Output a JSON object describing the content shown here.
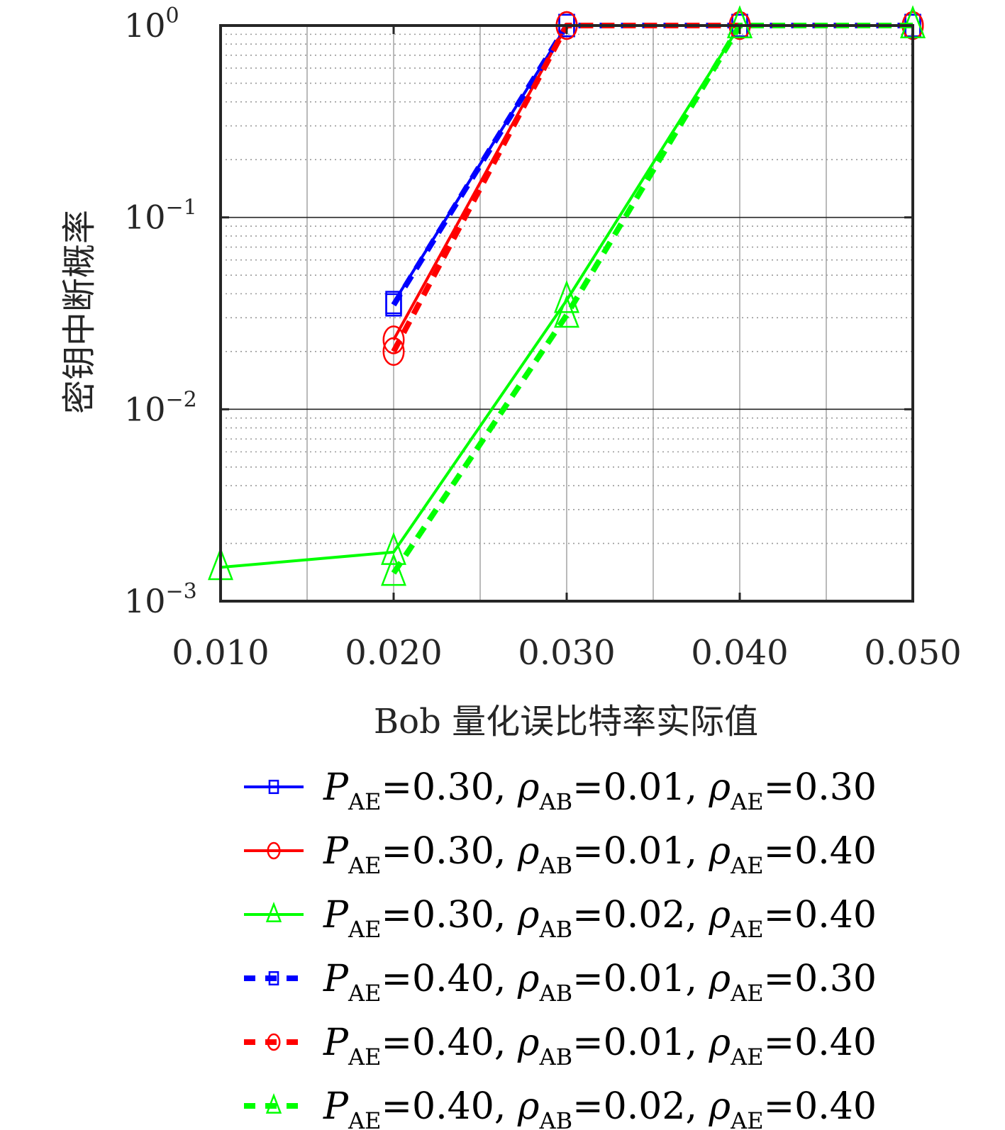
{
  "chart_data": {
    "type": "line",
    "xlabel": "Bob 量化误比特率实际值",
    "ylabel": "密钥中断概率",
    "x_tick_labels": [
      "0.010",
      "0.020",
      "0.030",
      "0.040",
      "0.050"
    ],
    "x_ticks": [
      0.01,
      0.02,
      0.03,
      0.04,
      0.05
    ],
    "xlim": [
      0.01,
      0.05
    ],
    "yscale": "log",
    "ylim": [
      0.001,
      1
    ],
    "y_tick_labels": [
      {
        "base": "10",
        "exp": "−3",
        "value": 0.001
      },
      {
        "base": "10",
        "exp": "−2",
        "value": 0.01
      },
      {
        "base": "10",
        "exp": "−1",
        "value": 0.1
      },
      {
        "base": "10",
        "exp": "0",
        "value": 1
      }
    ],
    "grid": true,
    "minor_grid": true,
    "legend_position": "bottom",
    "series": [
      {
        "name": "P_AE=0.30, ρ_AB=0.01, ρ_AE=0.30",
        "legend": {
          "P": "0.30",
          "rab": "0.01",
          "rae": "0.30"
        },
        "color": "#0000FF",
        "dash": "solid",
        "marker": "square",
        "x": [
          0.02,
          0.03,
          0.04,
          0.05
        ],
        "y": [
          0.036,
          1.0,
          1.0,
          1.0
        ]
      },
      {
        "name": "P_AE=0.30, ρ_AB=0.01, ρ_AE=0.40",
        "legend": {
          "P": "0.30",
          "rab": "0.01",
          "rae": "0.40"
        },
        "color": "#FF0000",
        "dash": "solid",
        "marker": "circle",
        "x": [
          0.02,
          0.03,
          0.04,
          0.05
        ],
        "y": [
          0.023,
          1.0,
          1.0,
          1.0
        ]
      },
      {
        "name": "P_AE=0.30, ρ_AB=0.02, ρ_AE=0.40",
        "legend": {
          "P": "0.30",
          "rab": "0.02",
          "rae": "0.40"
        },
        "color": "#00FF00",
        "dash": "solid",
        "marker": "triangle",
        "x": [
          0.01,
          0.02,
          0.03,
          0.04,
          0.05
        ],
        "y": [
          0.0015,
          0.0018,
          0.037,
          1.0,
          1.0
        ]
      },
      {
        "name": "P_AE=0.40, ρ_AB=0.01, ρ_AE=0.30",
        "legend": {
          "P": "0.40",
          "rab": "0.01",
          "rae": "0.30"
        },
        "color": "#0000FF",
        "dash": "dashed",
        "marker": "square",
        "x": [
          0.02,
          0.03,
          0.04,
          0.05
        ],
        "y": [
          0.035,
          1.0,
          1.0,
          1.0
        ]
      },
      {
        "name": "P_AE=0.40, ρ_AB=0.01, ρ_AE=0.40",
        "legend": {
          "P": "0.40",
          "rab": "0.01",
          "rae": "0.40"
        },
        "color": "#FF0000",
        "dash": "dashed",
        "marker": "circle",
        "x": [
          0.02,
          0.03,
          0.04,
          0.05
        ],
        "y": [
          0.02,
          1.0,
          1.0,
          1.0
        ]
      },
      {
        "name": "P_AE=0.40, ρ_AB=0.02, ρ_AE=0.40",
        "legend": {
          "P": "0.40",
          "rab": "0.02",
          "rae": "0.40"
        },
        "color": "#00FF00",
        "dash": "dashed",
        "marker": "triangle",
        "x": [
          0.02,
          0.03,
          0.04,
          0.05
        ],
        "y": [
          0.0014,
          0.031,
          1.0,
          1.0
        ]
      }
    ]
  }
}
